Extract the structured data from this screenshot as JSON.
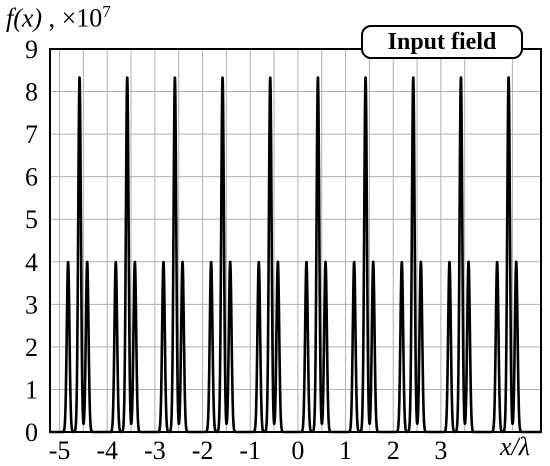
{
  "chart_data": {
    "type": "line",
    "title": "",
    "legend_box": "Input field",
    "ylabel_main": "f(x)",
    "ylabel_sep": " , ×10",
    "ylabel_exp": "7",
    "xlabel": "x/λ",
    "xlim": [
      -5.2,
      5.1
    ],
    "ylim": [
      0,
      9
    ],
    "grid": true,
    "x_ticks": [
      -5,
      -4,
      -3,
      -2,
      -1,
      0,
      1,
      2,
      3
    ],
    "y_ticks": [
      0,
      1,
      2,
      3,
      4,
      5,
      6,
      7,
      8,
      9
    ],
    "series": [
      {
        "peaks": [
          {
            "x": -4.82,
            "y": 4.0
          },
          {
            "x": -4.58,
            "y": 8.35
          },
          {
            "x": -4.42,
            "y": 4.0
          },
          {
            "x": -3.82,
            "y": 4.0
          },
          {
            "x": -3.58,
            "y": 8.35
          },
          {
            "x": -3.42,
            "y": 4.0
          },
          {
            "x": -2.82,
            "y": 4.0
          },
          {
            "x": -2.58,
            "y": 8.35
          },
          {
            "x": -2.42,
            "y": 4.0
          },
          {
            "x": -1.82,
            "y": 4.0
          },
          {
            "x": -1.58,
            "y": 8.35
          },
          {
            "x": -1.42,
            "y": 4.0
          },
          {
            "x": -0.82,
            "y": 4.0
          },
          {
            "x": -0.58,
            "y": 8.35
          },
          {
            "x": -0.42,
            "y": 4.0
          },
          {
            "x": 0.18,
            "y": 4.0
          },
          {
            "x": 0.42,
            "y": 8.35
          },
          {
            "x": 0.58,
            "y": 4.0
          },
          {
            "x": 1.18,
            "y": 4.0
          },
          {
            "x": 1.42,
            "y": 8.35
          },
          {
            "x": 1.58,
            "y": 4.0
          },
          {
            "x": 2.18,
            "y": 4.0
          },
          {
            "x": 2.42,
            "y": 8.35
          },
          {
            "x": 2.58,
            "y": 4.0
          },
          {
            "x": 3.18,
            "y": 4.0
          },
          {
            "x": 3.42,
            "y": 8.35
          },
          {
            "x": 3.58,
            "y": 4.0
          },
          {
            "x": 4.18,
            "y": 4.0
          },
          {
            "x": 4.42,
            "y": 8.35
          },
          {
            "x": 4.58,
            "y": 4.0
          }
        ],
        "peak_width": 0.028
      }
    ]
  }
}
